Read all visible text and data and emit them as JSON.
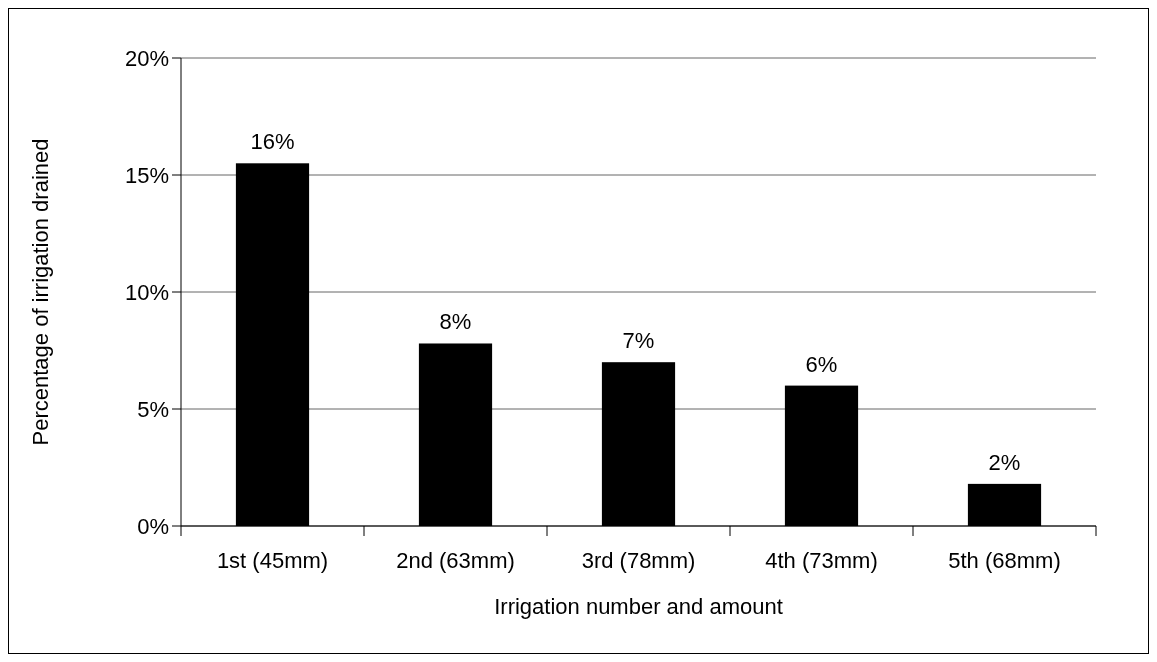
{
  "chart_data": {
    "type": "bar",
    "xlabel": "Irrigation number and amount",
    "ylabel": "Percentage of irrigation drained",
    "categories": [
      "1st (45mm)",
      "2nd (63mm)",
      "3rd (78mm)",
      "4th (73mm)",
      "5th (68mm)"
    ],
    "values": [
      15.5,
      7.8,
      7.0,
      6.0,
      1.8
    ],
    "value_labels": [
      "16%",
      "8%",
      "7%",
      "6%",
      "2%"
    ],
    "color": "#000000",
    "ylim": [
      0,
      20
    ],
    "yticks": [
      {
        "value": 0,
        "label": "0%"
      },
      {
        "value": 5,
        "label": "5%"
      },
      {
        "value": 10,
        "label": "10%"
      },
      {
        "value": 15,
        "label": "15%"
      },
      {
        "value": 20,
        "label": "20%"
      }
    ],
    "grid": "y"
  }
}
